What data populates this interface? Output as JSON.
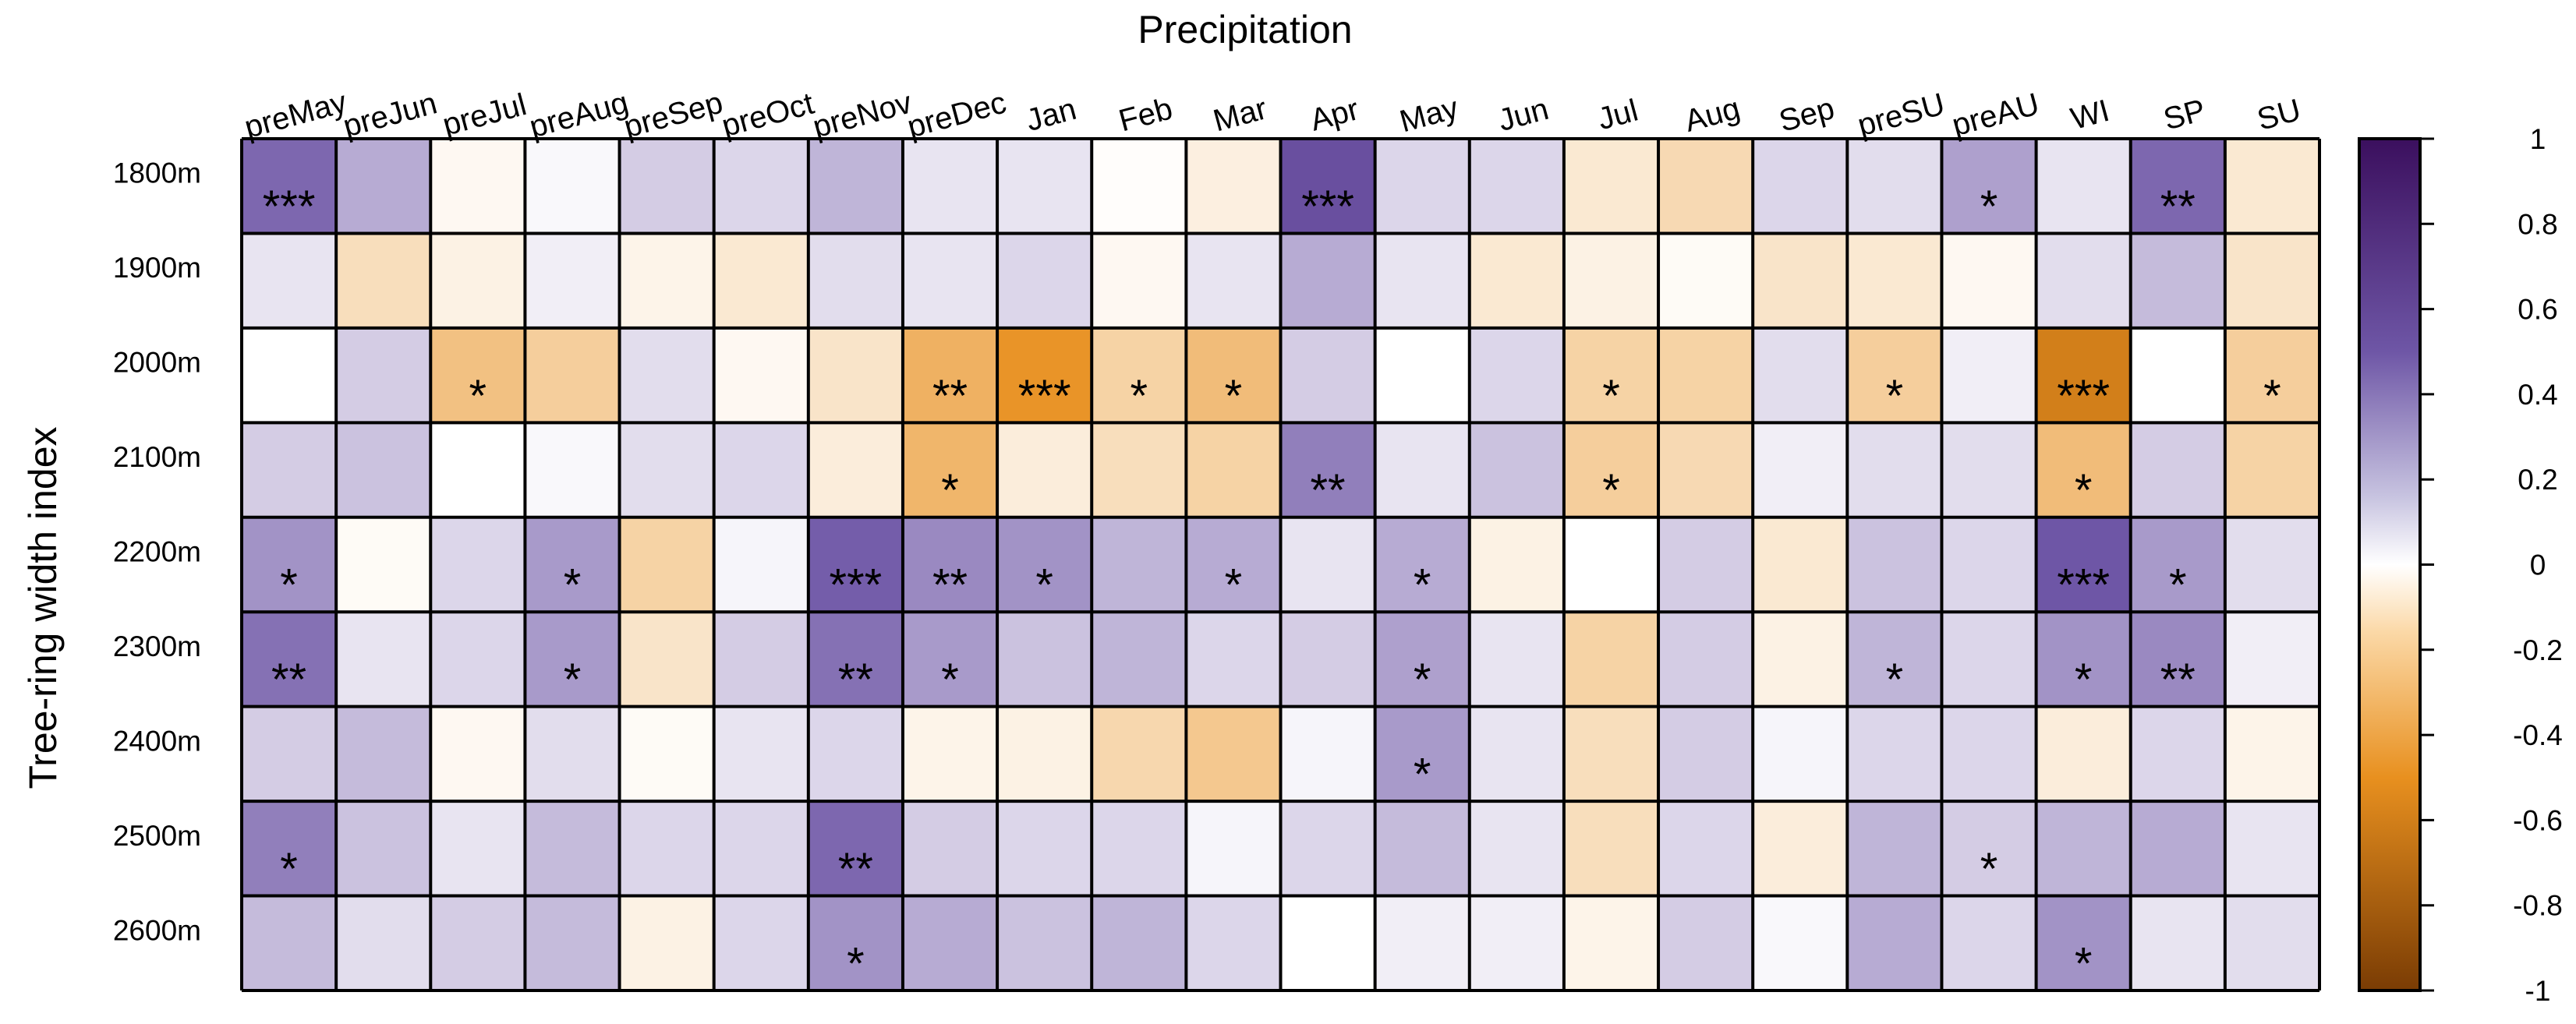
{
  "chart_data": {
    "type": "heatmap",
    "title": "Precipitation",
    "xlabel": "",
    "ylabel": "Tree-ring width index",
    "columns": [
      "preMay",
      "preJun",
      "preJul",
      "preAug",
      "preSep",
      "preOct",
      "preNov",
      "preDec",
      "Jan",
      "Feb",
      "Mar",
      "Apr",
      "May",
      "Jun",
      "Jul",
      "Aug",
      "Sep",
      "preSU",
      "preAU",
      "WI",
      "SP",
      "SU"
    ],
    "rows": [
      "1800m",
      "1900m",
      "2000m",
      "2100m",
      "2200m",
      "2300m",
      "2400m",
      "2500m",
      "2600m"
    ],
    "values": [
      [
        0.45,
        0.25,
        -0.03,
        0.02,
        0.15,
        0.12,
        0.22,
        0.08,
        0.08,
        -0.01,
        -0.07,
        0.55,
        0.12,
        0.12,
        -0.1,
        -0.17,
        0.12,
        0.1,
        0.28,
        0.08,
        0.45,
        -0.1
      ],
      [
        0.08,
        -0.15,
        -0.06,
        0.05,
        -0.05,
        -0.1,
        0.1,
        0.08,
        0.12,
        -0.03,
        0.08,
        0.25,
        0.08,
        -0.1,
        -0.06,
        -0.02,
        -0.12,
        -0.1,
        -0.03,
        0.1,
        0.2,
        -0.12
      ],
      [
        0.0,
        0.15,
        -0.28,
        -0.22,
        0.1,
        -0.03,
        -0.12,
        -0.35,
        -0.48,
        -0.2,
        -0.3,
        0.15,
        0.0,
        0.12,
        -0.2,
        -0.2,
        0.1,
        -0.22,
        0.05,
        -0.6,
        0.0,
        -0.22
      ],
      [
        0.15,
        0.18,
        0.0,
        0.02,
        0.1,
        0.12,
        -0.08,
        -0.33,
        -0.08,
        -0.15,
        -0.2,
        0.38,
        0.08,
        0.18,
        -0.22,
        -0.17,
        0.05,
        0.1,
        0.1,
        -0.3,
        0.15,
        -0.2
      ],
      [
        0.32,
        -0.02,
        0.12,
        0.3,
        -0.2,
        0.03,
        0.48,
        0.35,
        0.32,
        0.22,
        0.25,
        0.08,
        0.25,
        -0.06,
        0.0,
        0.15,
        -0.1,
        0.18,
        0.12,
        0.5,
        0.3,
        0.1
      ],
      [
        0.42,
        0.08,
        0.12,
        0.3,
        -0.12,
        0.15,
        0.42,
        0.3,
        0.18,
        0.22,
        0.12,
        0.15,
        0.28,
        0.08,
        -0.2,
        0.15,
        -0.06,
        0.22,
        0.12,
        0.32,
        0.35,
        0.05
      ],
      [
        0.15,
        0.2,
        -0.03,
        0.1,
        -0.02,
        0.08,
        0.12,
        -0.05,
        -0.06,
        -0.18,
        -0.25,
        0.03,
        0.3,
        0.08,
        -0.15,
        0.15,
        0.03,
        0.12,
        0.12,
        -0.08,
        0.12,
        -0.05
      ],
      [
        0.38,
        0.18,
        0.08,
        0.2,
        0.12,
        0.12,
        0.45,
        0.15,
        0.12,
        0.12,
        0.03,
        0.12,
        0.2,
        0.08,
        -0.15,
        0.12,
        -0.08,
        0.22,
        0.15,
        0.22,
        0.25,
        0.08
      ],
      [
        0.2,
        0.1,
        0.15,
        0.2,
        -0.06,
        0.12,
        0.32,
        0.25,
        0.18,
        0.22,
        0.12,
        0.0,
        0.05,
        0.05,
        -0.05,
        0.15,
        0.02,
        0.25,
        0.12,
        0.32,
        0.08,
        0.1
      ]
    ],
    "significance": [
      [
        "***",
        "",
        "",
        "",
        "",
        "",
        "",
        "",
        "",
        "",
        "",
        "***",
        "",
        "",
        "",
        "",
        "",
        "",
        "*",
        "",
        "**",
        ""
      ],
      [
        "",
        "",
        "",
        "",
        "",
        "",
        "",
        "",
        "",
        "",
        "",
        "",
        "",
        "",
        "",
        "",
        "",
        "",
        "",
        "",
        "",
        ""
      ],
      [
        "",
        "",
        "*",
        "",
        "",
        "",
        "",
        "**",
        "***",
        "*",
        "*",
        "",
        "",
        "",
        "*",
        "",
        "",
        "*",
        "",
        "***",
        "",
        "*"
      ],
      [
        "",
        "",
        "",
        "",
        "",
        "",
        "",
        "*",
        "",
        "",
        "",
        "**",
        "",
        "",
        "*",
        "",
        "",
        "",
        "",
        "*",
        "",
        ""
      ],
      [
        "*",
        "",
        "",
        "*",
        "",
        "",
        "***",
        "**",
        "*",
        "",
        "*",
        "",
        "*",
        "",
        "",
        "",
        "",
        "",
        "",
        "***",
        "*",
        ""
      ],
      [
        "**",
        "",
        "",
        "*",
        "",
        "",
        "**",
        "*",
        "",
        "",
        "",
        "",
        "*",
        "",
        "",
        "",
        "",
        "*",
        "",
        "*",
        "**",
        ""
      ],
      [
        "",
        "",
        "",
        "",
        "",
        "",
        "",
        "",
        "",
        "",
        "",
        "",
        "*",
        "",
        "",
        "",
        "",
        "",
        "",
        "",
        "",
        ""
      ],
      [
        "*",
        "",
        "",
        "",
        "",
        "",
        "**",
        "",
        "",
        "",
        "",
        "",
        "",
        "",
        "",
        "",
        "",
        "",
        "*",
        "",
        "",
        ""
      ],
      [
        "",
        "",
        "",
        "",
        "",
        "",
        "*",
        "",
        "",
        "",
        "",
        "",
        "",
        "",
        "",
        "",
        "",
        "",
        "",
        "*",
        "",
        ""
      ]
    ],
    "color_scale": {
      "min": -1,
      "max": 1,
      "ticks": [
        "1",
        "0.8",
        "0.6",
        "0.4",
        "0.2",
        "0",
        "-0.2",
        "-0.4",
        "-0.6",
        "-0.8",
        "-1"
      ],
      "positive_color": "#3b0f5e",
      "mid_color": "#ffffff",
      "negative_color": "#7a3c04",
      "orange_color": "#e8901f"
    },
    "legend_placement": "right"
  }
}
